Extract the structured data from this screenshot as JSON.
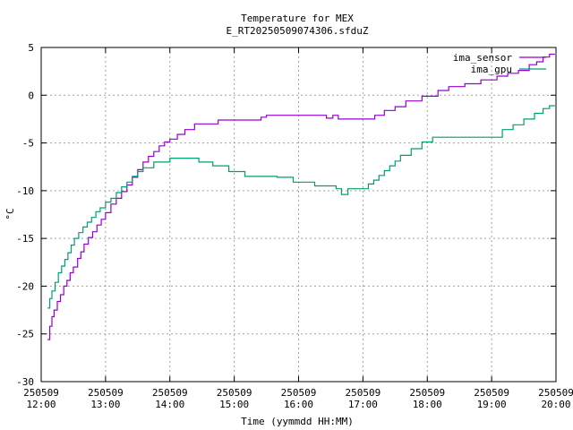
{
  "chart_data": {
    "type": "line",
    "title": "Temperature for MEX",
    "subtitle": "E_RT20250509074306.sfduZ",
    "xlabel": "Time (yymmdd HH:MM)",
    "ylabel": "°C",
    "x_tick_labels": [
      {
        "date": "250509",
        "time": "12:00"
      },
      {
        "date": "250509",
        "time": "13:00"
      },
      {
        "date": "250509",
        "time": "14:00"
      },
      {
        "date": "250509",
        "time": "15:00"
      },
      {
        "date": "250509",
        "time": "16:00"
      },
      {
        "date": "250509",
        "time": "17:00"
      },
      {
        "date": "250509",
        "time": "18:00"
      },
      {
        "date": "250509",
        "time": "19:00"
      },
      {
        "date": "250509",
        "time": "20:00"
      }
    ],
    "xlim": [
      "2025-05-09 12:00",
      "2025-05-09 20:00"
    ],
    "ylim": [
      -30,
      5
    ],
    "y_ticks": [
      5,
      0,
      -5,
      -10,
      -15,
      -20,
      -25,
      -30
    ],
    "grid": true,
    "legend_position": "top-right",
    "series": [
      {
        "name": "ima_sensor",
        "color": "#9400d3",
        "step": true,
        "points": [
          [
            "12:06",
            -25.6
          ],
          [
            "12:08",
            -24.2
          ],
          [
            "12:10",
            -23.2
          ],
          [
            "12:12",
            -22.5
          ],
          [
            "12:15",
            -21.6
          ],
          [
            "12:18",
            -20.9
          ],
          [
            "12:21",
            -20.0
          ],
          [
            "12:24",
            -19.4
          ],
          [
            "12:27",
            -18.6
          ],
          [
            "12:30",
            -18.0
          ],
          [
            "12:34",
            -17.1
          ],
          [
            "12:37",
            -16.4
          ],
          [
            "12:40",
            -15.6
          ],
          [
            "12:44",
            -14.9
          ],
          [
            "12:48",
            -14.3
          ],
          [
            "12:52",
            -13.6
          ],
          [
            "12:56",
            -13.0
          ],
          [
            "13:00",
            -12.3
          ],
          [
            "13:05",
            -11.4
          ],
          [
            "13:10",
            -10.8
          ],
          [
            "13:15",
            -10.1
          ],
          [
            "13:20",
            -9.4
          ],
          [
            "13:25",
            -8.6
          ],
          [
            "13:30",
            -7.8
          ],
          [
            "13:35",
            -7.0
          ],
          [
            "13:40",
            -6.4
          ],
          [
            "13:45",
            -5.9
          ],
          [
            "13:50",
            -5.3
          ],
          [
            "13:55",
            -4.9
          ],
          [
            "14:00",
            -4.6
          ],
          [
            "14:07",
            -4.1
          ],
          [
            "14:14",
            -3.6
          ],
          [
            "14:23",
            -3.0
          ],
          [
            "14:45",
            -2.6
          ],
          [
            "15:25",
            -2.3
          ],
          [
            "15:30",
            -2.1
          ],
          [
            "16:26",
            -2.4
          ],
          [
            "16:32",
            -2.1
          ],
          [
            "16:37",
            -2.5
          ],
          [
            "17:00",
            -2.5
          ],
          [
            "17:11",
            -2.1
          ],
          [
            "17:20",
            -1.6
          ],
          [
            "17:30",
            -1.2
          ],
          [
            "17:40",
            -0.6
          ],
          [
            "17:55",
            -0.1
          ],
          [
            "18:10",
            0.5
          ],
          [
            "18:20",
            0.9
          ],
          [
            "18:35",
            1.2
          ],
          [
            "18:50",
            1.6
          ],
          [
            "19:05",
            2.0
          ],
          [
            "19:15",
            2.3
          ],
          [
            "19:25",
            2.6
          ],
          [
            "19:35",
            3.2
          ],
          [
            "19:42",
            3.5
          ],
          [
            "19:48",
            4.0
          ],
          [
            "19:54",
            4.3
          ],
          [
            "19:59",
            4.3
          ]
        ]
      },
      {
        "name": "ima_gpu",
        "color": "#009e73",
        "step": true,
        "points": [
          [
            "12:06",
            -22.3
          ],
          [
            "12:08",
            -21.3
          ],
          [
            "12:10",
            -20.5
          ],
          [
            "12:13",
            -19.6
          ],
          [
            "12:16",
            -18.6
          ],
          [
            "12:19",
            -17.9
          ],
          [
            "12:22",
            -17.2
          ],
          [
            "12:25",
            -16.5
          ],
          [
            "12:28",
            -15.7
          ],
          [
            "12:31",
            -15.0
          ],
          [
            "12:35",
            -14.4
          ],
          [
            "12:39",
            -13.8
          ],
          [
            "12:43",
            -13.3
          ],
          [
            "12:47",
            -12.8
          ],
          [
            "12:51",
            -12.2
          ],
          [
            "12:55",
            -11.8
          ],
          [
            "13:00",
            -11.2
          ],
          [
            "13:05",
            -10.8
          ],
          [
            "13:10",
            -10.2
          ],
          [
            "13:15",
            -9.6
          ],
          [
            "13:20",
            -9.1
          ],
          [
            "13:25",
            -8.5
          ],
          [
            "13:30",
            -8.0
          ],
          [
            "13:35",
            -7.6
          ],
          [
            "13:45",
            -7.0
          ],
          [
            "14:00",
            -6.6
          ],
          [
            "14:27",
            -7.0
          ],
          [
            "14:40",
            -7.4
          ],
          [
            "14:55",
            -8.0
          ],
          [
            "15:10",
            -8.5
          ],
          [
            "15:40",
            -8.6
          ],
          [
            "15:55",
            -9.1
          ],
          [
            "16:15",
            -9.5
          ],
          [
            "16:35",
            -9.8
          ],
          [
            "16:40",
            -10.4
          ],
          [
            "16:46",
            -9.8
          ],
          [
            "17:00",
            -9.8
          ],
          [
            "17:05",
            -9.3
          ],
          [
            "17:10",
            -8.9
          ],
          [
            "17:15",
            -8.4
          ],
          [
            "17:20",
            -7.9
          ],
          [
            "17:25",
            -7.4
          ],
          [
            "17:30",
            -6.9
          ],
          [
            "17:35",
            -6.3
          ],
          [
            "17:45",
            -5.6
          ],
          [
            "17:55",
            -4.9
          ],
          [
            "18:05",
            -4.4
          ],
          [
            "19:00",
            -4.4
          ],
          [
            "19:10",
            -3.6
          ],
          [
            "19:20",
            -3.1
          ],
          [
            "19:30",
            -2.5
          ],
          [
            "19:40",
            -1.9
          ],
          [
            "19:48",
            -1.4
          ],
          [
            "19:54",
            -1.1
          ],
          [
            "19:59",
            -1.1
          ]
        ]
      }
    ]
  }
}
